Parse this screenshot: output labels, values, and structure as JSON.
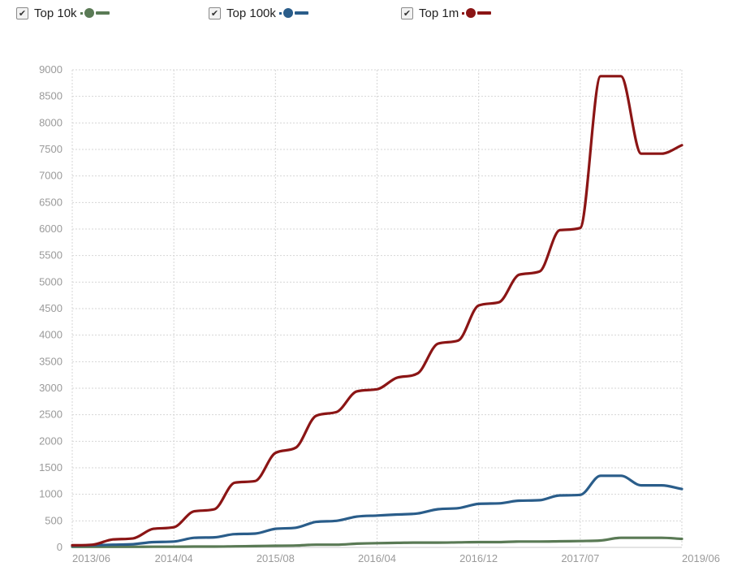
{
  "legend": [
    {
      "label": "Top 10k",
      "checked": "✔",
      "color": "#5a7a55"
    },
    {
      "label": "Top 100k",
      "checked": "✔",
      "color": "#2a5d8a"
    },
    {
      "label": "Top 1m",
      "checked": "✔",
      "color": "#8b1515"
    }
  ],
  "chart_data": {
    "type": "line",
    "title": "",
    "xlabel": "",
    "ylabel": "",
    "ylim": [
      0,
      9000
    ],
    "yticks": [
      0,
      500,
      1000,
      1500,
      2000,
      2500,
      3000,
      3500,
      4000,
      4500,
      5000,
      5500,
      6000,
      6500,
      7000,
      7500,
      8000,
      8500,
      9000
    ],
    "xticks": [
      "2013/06",
      "2014/04",
      "2015/08",
      "2016/04",
      "2016/12",
      "2017/07",
      "2019/06"
    ],
    "grid": true,
    "legend_position": "top",
    "series": [
      {
        "name": "Top 10k",
        "color": "#5a7a55",
        "x": [
          0,
          1,
          2,
          3,
          4,
          5,
          6,
          7,
          8,
          9,
          10,
          11,
          12,
          13,
          14,
          15,
          16,
          17,
          18,
          19,
          20,
          21,
          22,
          23,
          24,
          25,
          26,
          27,
          28,
          29,
          30
        ],
        "values": [
          10,
          10,
          10,
          10,
          12,
          12,
          15,
          15,
          20,
          25,
          30,
          35,
          50,
          50,
          70,
          80,
          85,
          90,
          90,
          95,
          100,
          100,
          110,
          110,
          115,
          120,
          130,
          180,
          180,
          180,
          160
        ]
      },
      {
        "name": "Top 100k",
        "color": "#2a5d8a",
        "x": [
          0,
          1,
          2,
          3,
          4,
          5,
          6,
          7,
          8,
          9,
          10,
          11,
          12,
          13,
          14,
          15,
          16,
          17,
          18,
          19,
          20,
          21,
          22,
          23,
          24,
          25,
          26,
          27,
          28,
          29,
          30
        ],
        "values": [
          30,
          40,
          50,
          60,
          100,
          110,
          180,
          190,
          250,
          260,
          350,
          370,
          480,
          500,
          580,
          600,
          620,
          640,
          720,
          740,
          820,
          830,
          880,
          890,
          980,
          990,
          1350,
          1350,
          1170,
          1170,
          1100
        ]
      },
      {
        "name": "Top 1m",
        "color": "#8b1515",
        "x": [
          0,
          1,
          2,
          3,
          4,
          5,
          6,
          7,
          8,
          9,
          10,
          11,
          12,
          13,
          14,
          15,
          16,
          17,
          18,
          19,
          20,
          21,
          22,
          23,
          24,
          25,
          26,
          27,
          28,
          29,
          30
        ],
        "values": [
          40,
          50,
          150,
          170,
          350,
          380,
          680,
          720,
          1220,
          1250,
          1780,
          1880,
          2480,
          2550,
          2940,
          2980,
          3200,
          3280,
          3840,
          3900,
          4560,
          4620,
          5140,
          5200,
          5980,
          6020,
          8880,
          8880,
          7420,
          7420,
          7580
        ]
      }
    ]
  }
}
